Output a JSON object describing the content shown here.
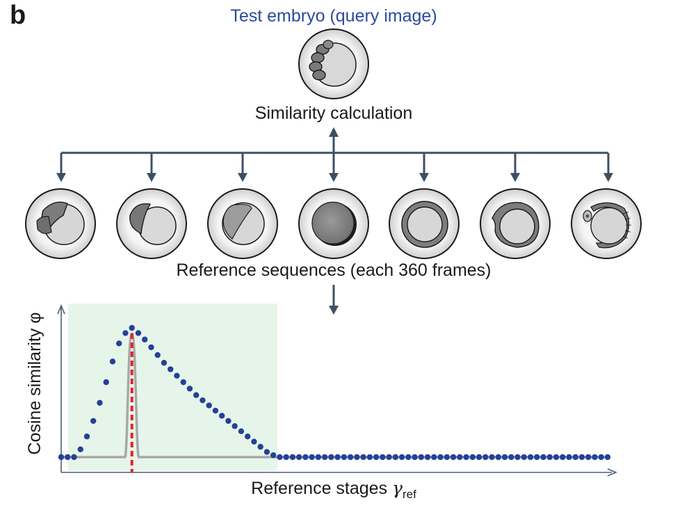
{
  "panel_label": "b",
  "query_title": "Test embryo (query image)",
  "similarity_title": "Similarity calculation",
  "reference_title": "Reference sequences (each 360 frames)",
  "chart_data": {
    "type": "line",
    "xlabel_main": "Reference stages ",
    "xlabel_symbol": "γ",
    "xlabel_subscript": "ref",
    "ylabel": "Cosine similarity φ",
    "series": [
      {
        "style": "dotted-blue",
        "y": [
          0.0,
          0.0,
          0.0,
          0.06,
          0.16,
          0.28,
          0.42,
          0.58,
          0.74,
          0.88,
          0.96,
          1.0,
          0.96,
          0.91,
          0.85,
          0.79,
          0.73,
          0.68,
          0.63,
          0.58,
          0.53,
          0.48,
          0.44,
          0.4,
          0.36,
          0.32,
          0.28,
          0.24,
          0.2,
          0.16,
          0.12,
          0.08,
          0.04,
          0.015,
          0.0,
          0.0,
          0.0,
          0.0,
          0.0,
          0.0,
          0.0,
          0.0,
          0.0,
          0.0,
          0.0,
          0.0,
          0.0,
          0.0,
          0.0,
          0.0,
          0.0,
          0.0,
          0.0,
          0.0,
          0.0,
          0.0,
          0.0,
          0.0,
          0.0,
          0.0,
          0.0,
          0.0,
          0.0,
          0.0,
          0.0,
          0.0,
          0.0,
          0.0,
          0.0,
          0.0,
          0.0,
          0.0,
          0.0,
          0.0,
          0.0,
          0.0,
          0.0,
          0.0,
          0.0,
          0.0,
          0.0,
          0.0,
          0.0,
          0.0,
          0.0,
          0.0
        ]
      },
      {
        "style": "grey-sharp-peak"
      },
      {
        "style": "red-dashed-vertical"
      }
    ],
    "colors": {
      "dots": "#24409a",
      "peak": "#a8a8a8",
      "marker": "#e2232a",
      "shade": "#e6f5ea",
      "axis": "#4a5f72"
    }
  }
}
